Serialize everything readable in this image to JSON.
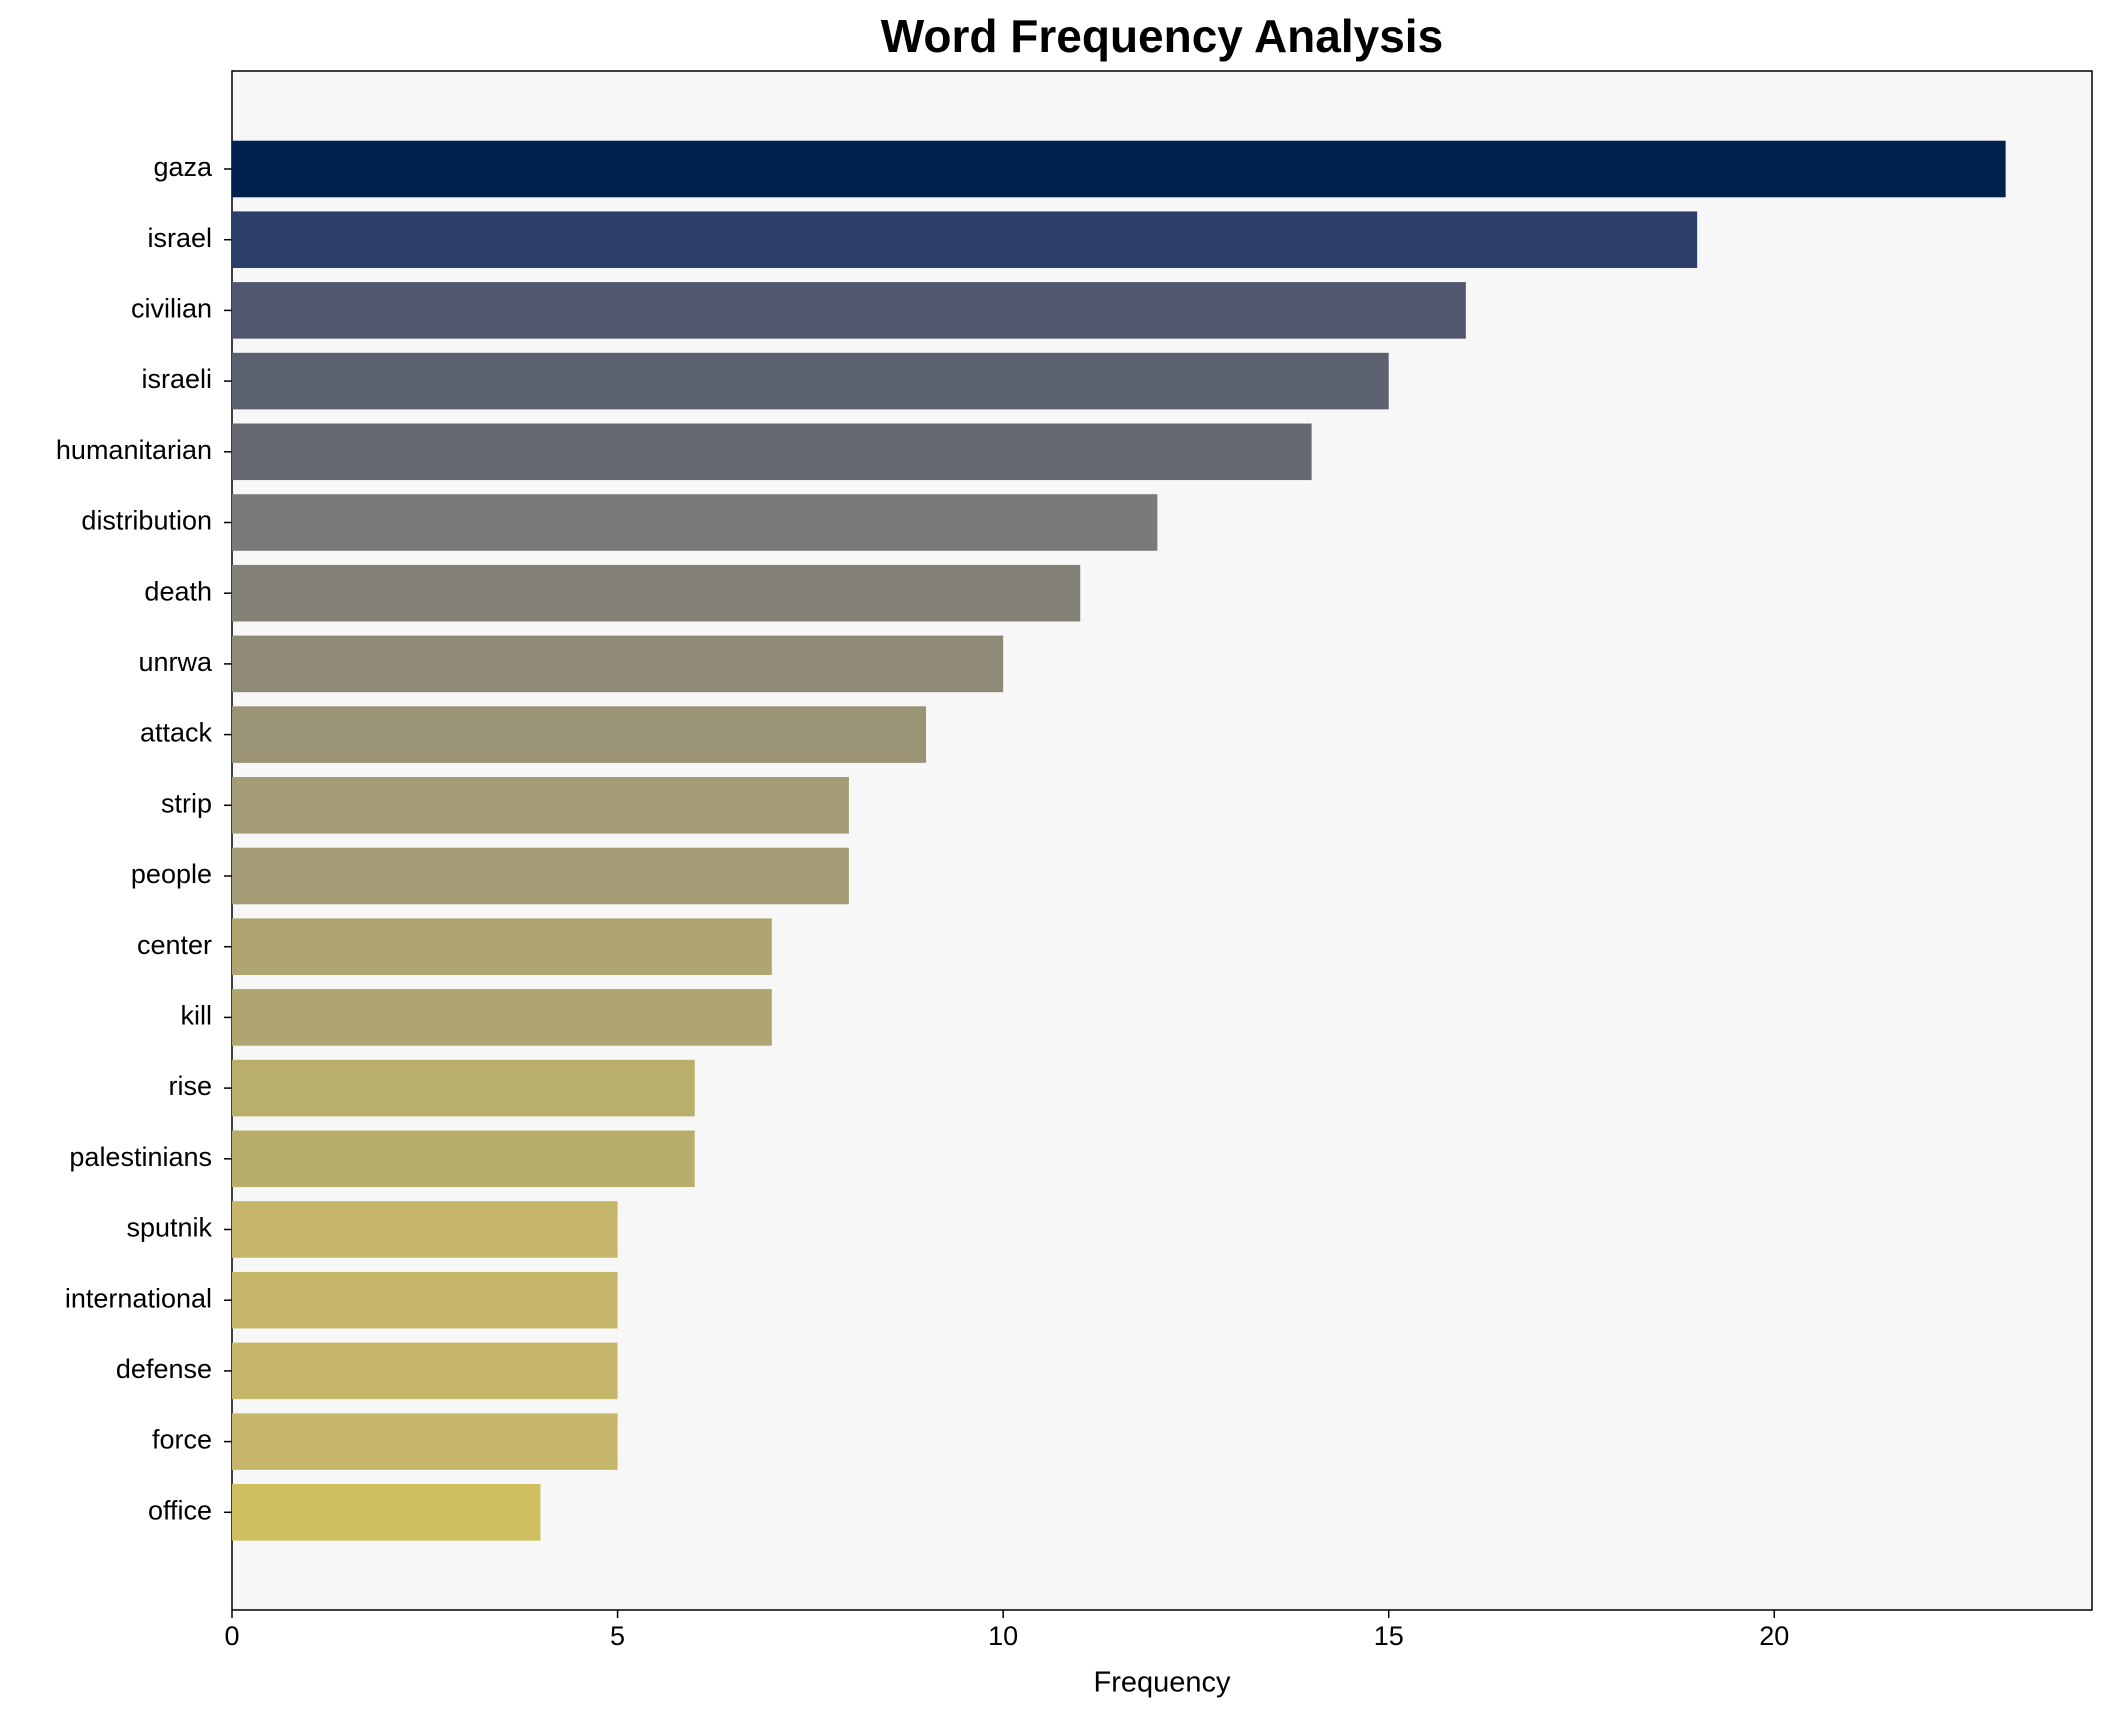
{
  "chart_data": {
    "type": "barh",
    "title": "Word Frequency Analysis",
    "x_label": "Frequency",
    "categories": [
      "gaza",
      "israel",
      "civilian",
      "israeli",
      "humanitarian",
      "distribution",
      "death",
      "unrwa",
      "attack",
      "strip",
      "people",
      "center",
      "kill",
      "rise",
      "palestinians",
      "sputnik",
      "international",
      "defense",
      "force",
      "office"
    ],
    "values": [
      23,
      19,
      16,
      15,
      14,
      12,
      11,
      10,
      9,
      8,
      8,
      7,
      7,
      6,
      6,
      5,
      5,
      5,
      5,
      4
    ],
    "colors": [
      "#00224e",
      "#2c3f6b",
      "#50566d",
      "#5c6170",
      "#676970",
      "#7a7a78",
      "#838076",
      "#8e8a75",
      "#9a9376",
      "#a39c74",
      "#a39c74",
      "#aea570",
      "#aea570",
      "#baae6b",
      "#b9ad6c",
      "#c5b66a",
      "#c5b66a",
      "#c5b66a",
      "#c5b66a",
      "#cfbf5f"
    ],
    "xlim": [
      0,
      24.12
    ],
    "xticks": [
      0,
      5,
      10,
      15,
      20
    ]
  }
}
